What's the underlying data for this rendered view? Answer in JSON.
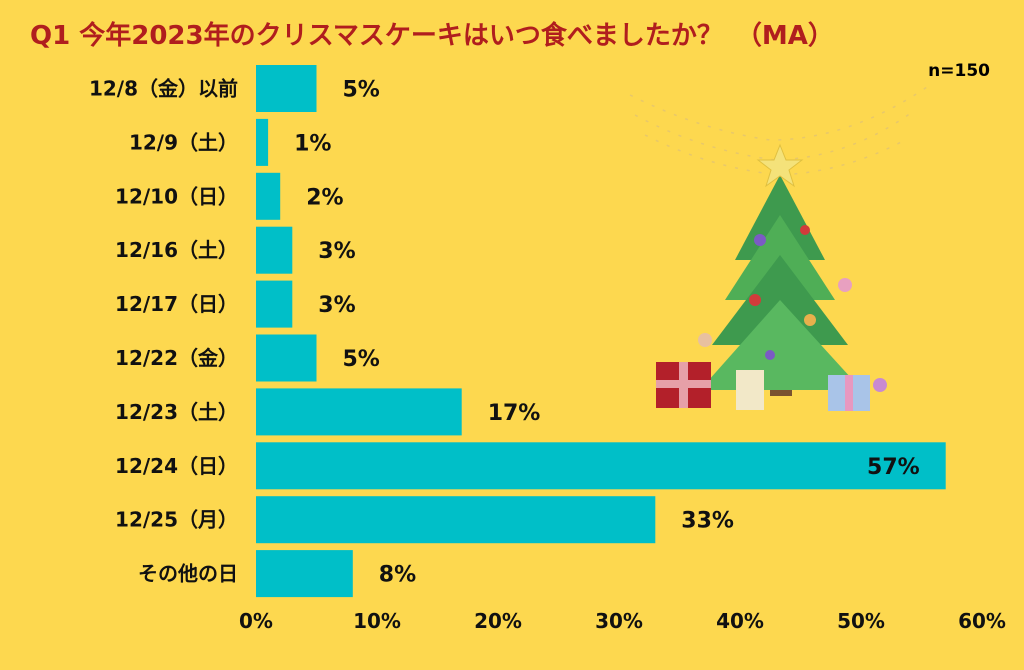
{
  "chart_data": {
    "type": "bar",
    "orientation": "horizontal",
    "title": "Q1 今年2023年のクリスマスケーキはいつ食べましたか？　（MA）",
    "note": "n=150",
    "categories": [
      "12/8（金）以前",
      "12/9（土）",
      "12/10（日）",
      "12/16（土）",
      "12/17（日）",
      "12/22（金）",
      "12/23（土）",
      "12/24（日）",
      "12/25（月）",
      "その他の日"
    ],
    "values": [
      5,
      1,
      2,
      3,
      3,
      5,
      17,
      57,
      33,
      8
    ],
    "value_labels": [
      "5%",
      "1%",
      "2%",
      "3%",
      "3%",
      "5%",
      "17%",
      "57%",
      "33%",
      "8%"
    ],
    "xlim": [
      0,
      60
    ],
    "xticks": [
      0,
      10,
      20,
      30,
      40,
      50,
      60
    ],
    "xtick_labels": [
      "0%",
      "10%",
      "20%",
      "30%",
      "40%",
      "50%",
      "60%"
    ],
    "grid": false,
    "bar_color": "#00BFC8"
  },
  "colors": {
    "background": "#FDD84F",
    "title": "#B01E1E"
  },
  "decorations": [
    "christmas-tree-icon",
    "string-lights-icon",
    "gift-box-icon"
  ]
}
